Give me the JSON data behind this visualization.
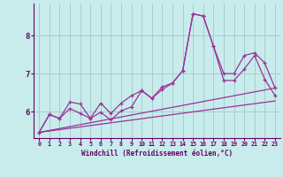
{
  "xlabel": "Windchill (Refroidissement éolien,°C)",
  "bg_color": "#c8ecec",
  "line_color": "#993399",
  "grid_color": "#aacccc",
  "axis_color": "#660066",
  "tick_color": "#660066",
  "xlim": [
    -0.5,
    23.5
  ],
  "ylim": [
    5.3,
    8.85
  ],
  "xticks": [
    0,
    1,
    2,
    3,
    4,
    5,
    6,
    7,
    8,
    9,
    10,
    11,
    12,
    13,
    14,
    15,
    16,
    17,
    18,
    19,
    20,
    21,
    22,
    23
  ],
  "yticks": [
    6,
    7,
    8
  ],
  "series1": [
    [
      0,
      5.45
    ],
    [
      1,
      5.92
    ],
    [
      2,
      5.82
    ],
    [
      3,
      6.08
    ],
    [
      4,
      5.95
    ],
    [
      5,
      5.82
    ],
    [
      6,
      5.98
    ],
    [
      7,
      5.78
    ],
    [
      8,
      6.02
    ],
    [
      9,
      6.12
    ],
    [
      10,
      6.55
    ],
    [
      11,
      6.35
    ],
    [
      12,
      6.58
    ],
    [
      13,
      6.75
    ],
    [
      14,
      7.08
    ],
    [
      15,
      8.58
    ],
    [
      16,
      8.52
    ],
    [
      17,
      7.72
    ],
    [
      18,
      6.82
    ],
    [
      19,
      6.82
    ],
    [
      20,
      7.12
    ],
    [
      21,
      7.48
    ],
    [
      22,
      6.85
    ],
    [
      23,
      6.42
    ]
  ],
  "series2": [
    [
      0,
      5.45
    ],
    [
      1,
      5.92
    ],
    [
      2,
      5.82
    ],
    [
      3,
      6.25
    ],
    [
      4,
      6.2
    ],
    [
      5,
      5.82
    ],
    [
      6,
      6.22
    ],
    [
      7,
      5.95
    ],
    [
      8,
      6.22
    ],
    [
      9,
      6.42
    ],
    [
      10,
      6.55
    ],
    [
      11,
      6.35
    ],
    [
      12,
      6.65
    ],
    [
      13,
      6.75
    ],
    [
      14,
      7.08
    ],
    [
      15,
      8.58
    ],
    [
      16,
      8.52
    ],
    [
      17,
      7.72
    ],
    [
      18,
      7.0
    ],
    [
      19,
      7.0
    ],
    [
      20,
      7.48
    ],
    [
      21,
      7.55
    ],
    [
      22,
      7.28
    ],
    [
      23,
      6.62
    ]
  ],
  "series3": [
    [
      0,
      5.45
    ],
    [
      23,
      6.62
    ]
  ],
  "series4": [
    [
      0,
      5.45
    ],
    [
      23,
      6.28
    ]
  ]
}
